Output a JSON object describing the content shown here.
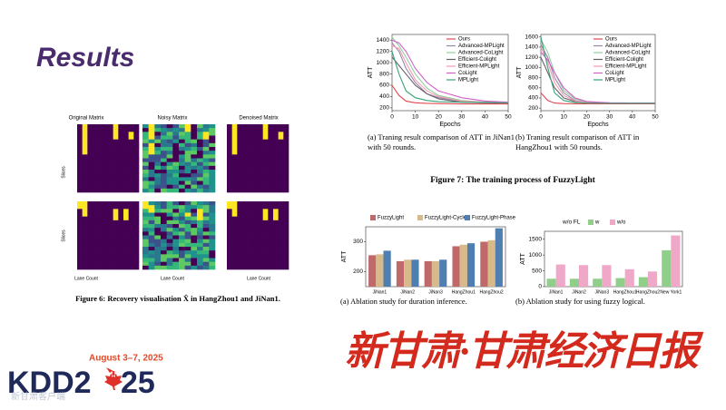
{
  "slide": {
    "title": "Results",
    "figure6": {
      "panel_titles": [
        "Original Matrix",
        "Noisy Matrix",
        "Denoised Matrix"
      ],
      "ylabel": "Slices",
      "xlabel": "Lane Count",
      "caption": "Figure 6: Recovery visualisation X̂ in HangZhou1 and JiNan1."
    },
    "figure7": {
      "captions": [
        "(a) Traning result comparison of ATT in JiNan1 with 50 rounds.",
        "(b) Traning result comparison of ATT in HangZhou1 with 50 rounds."
      ],
      "caption": "Figure 7: The training process of FuzzyLight"
    },
    "figure9": {
      "captions": [
        "(a) Ablation study for duration inference.",
        "(b) Ablation study for using fuzzy logical."
      ]
    },
    "watermark": "新甘肃·甘肃经济日报",
    "logo": {
      "dates": "August 3–7, 2025",
      "left": "KDD2",
      "right": "25",
      "watermark": "新甘肃客户端"
    }
  },
  "chart_data": [
    {
      "type": "line",
      "xlabel": "Epochs",
      "ylabel": "ATT",
      "x": [
        0,
        3,
        6,
        10,
        15,
        20,
        30,
        40,
        50
      ],
      "xlim": [
        0,
        50
      ],
      "xticks": [
        0,
        10,
        20,
        30,
        40,
        50
      ],
      "ylim": [
        150,
        1500
      ],
      "yticks": [
        200,
        400,
        600,
        800,
        1000,
        1200,
        1400
      ],
      "series": [
        {
          "name": "Ours",
          "color": "#e0494f",
          "values": [
            600,
            420,
            320,
            290,
            280,
            275,
            270,
            270,
            270
          ]
        },
        {
          "name": "Advanced-MPLight",
          "color": "#9a86a8",
          "values": [
            1350,
            1200,
            900,
            650,
            450,
            380,
            320,
            300,
            290
          ]
        },
        {
          "name": "Advanced-CoLight",
          "color": "#8fd19e",
          "values": [
            1450,
            1300,
            1100,
            800,
            550,
            420,
            330,
            300,
            290
          ]
        },
        {
          "name": "Efficient-Colight",
          "color": "#6b5f6e",
          "values": [
            1100,
            950,
            800,
            600,
            450,
            360,
            300,
            290,
            285
          ]
        },
        {
          "name": "Efficient-MPLight",
          "color": "#f29bb0",
          "values": [
            1300,
            1250,
            1000,
            700,
            500,
            400,
            320,
            300,
            290
          ]
        },
        {
          "name": "CoLight",
          "color": "#d35fc8",
          "values": [
            1400,
            1350,
            1200,
            900,
            650,
            500,
            380,
            320,
            300
          ]
        },
        {
          "name": "MPLight",
          "color": "#3aa37a",
          "values": [
            1200,
            800,
            500,
            380,
            330,
            310,
            300,
            295,
            290
          ]
        }
      ]
    },
    {
      "type": "line",
      "xlabel": "Epochs",
      "ylabel": "ATT",
      "x": [
        0,
        3,
        6,
        10,
        15,
        20,
        30,
        40,
        50
      ],
      "xlim": [
        0,
        50
      ],
      "xticks": [
        0,
        10,
        20,
        30,
        40,
        50
      ],
      "ylim": [
        150,
        1650
      ],
      "yticks": [
        200,
        400,
        600,
        800,
        1000,
        1200,
        1400,
        1600
      ],
      "series": [
        {
          "name": "Ours",
          "color": "#e0494f",
          "values": [
            500,
            350,
            300,
            290,
            285,
            285,
            285,
            285,
            285
          ]
        },
        {
          "name": "Advanced-MPLight",
          "color": "#9a86a8",
          "values": [
            1450,
            1200,
            800,
            500,
            350,
            310,
            300,
            295,
            295
          ]
        },
        {
          "name": "Advanced-CoLight",
          "color": "#8fd19e",
          "values": [
            1550,
            1300,
            900,
            550,
            380,
            320,
            300,
            295,
            295
          ]
        },
        {
          "name": "Efficient-Colight",
          "color": "#6b5f6e",
          "values": [
            1200,
            900,
            600,
            400,
            330,
            310,
            300,
            295,
            295
          ]
        },
        {
          "name": "Efficient-MPLight",
          "color": "#f29bb0",
          "values": [
            1400,
            1100,
            700,
            450,
            340,
            310,
            300,
            295,
            295
          ]
        },
        {
          "name": "CoLight",
          "color": "#d35fc8",
          "values": [
            1300,
            1150,
            900,
            600,
            400,
            330,
            305,
            300,
            300
          ]
        },
        {
          "name": "MPLight",
          "color": "#3aa37a",
          "values": [
            1600,
            1000,
            500,
            350,
            310,
            300,
            295,
            295,
            295
          ]
        }
      ]
    },
    {
      "type": "bar",
      "ylabel": "ATT",
      "categories": [
        "JiNan1",
        "JiNan2",
        "JiNan3",
        "HangZhou1",
        "HangZhou2"
      ],
      "ylim": [
        150,
        350
      ],
      "yticks": [
        200,
        300
      ],
      "series": [
        {
          "name": "FuzzyLight",
          "color": "#c0696b",
          "values": [
            255,
            235,
            235,
            285,
            300
          ]
        },
        {
          "name": "FuzzyLight-Cycle",
          "color": "#d8b98a",
          "values": [
            258,
            240,
            235,
            290,
            305
          ]
        },
        {
          "name": "FuzzyLight-Phase",
          "color": "#4f7fb0",
          "values": [
            270,
            240,
            240,
            295,
            345
          ]
        }
      ]
    },
    {
      "type": "bar",
      "ylabel": "ATT",
      "legend_title": "w/o FL",
      "categories": [
        "JiNan1",
        "JiNan2",
        "JiNan3",
        "HangZhou1",
        "HangZhou2",
        "New York1"
      ],
      "ylim": [
        0,
        1750
      ],
      "yticks": [
        0,
        500,
        1000,
        1500
      ],
      "series": [
        {
          "name": "w",
          "color": "#8fcf8a",
          "values": [
            250,
            250,
            250,
            270,
            300,
            1150
          ]
        },
        {
          "name": "w/o",
          "color": "#f0a8c8",
          "values": [
            700,
            680,
            680,
            550,
            480,
            1620
          ]
        }
      ]
    }
  ]
}
